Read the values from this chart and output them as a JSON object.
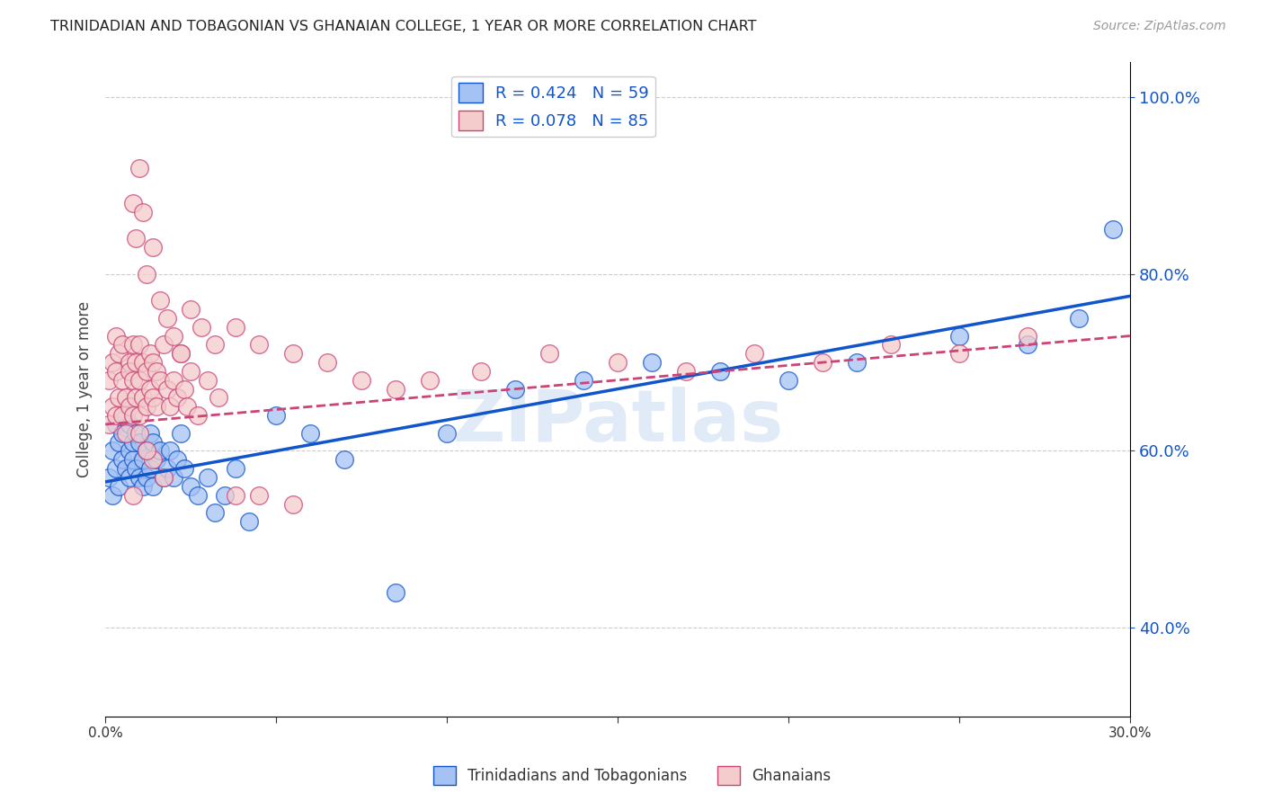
{
  "title": "TRINIDADIAN AND TOBAGONIAN VS GHANAIAN COLLEGE, 1 YEAR OR MORE CORRELATION CHART",
  "source": "Source: ZipAtlas.com",
  "ylabel": "College, 1 year or more",
  "legend_labels": [
    "Trinidadians and Tobagonians",
    "Ghanaians"
  ],
  "r_blue": 0.424,
  "n_blue": 59,
  "r_pink": 0.078,
  "n_pink": 85,
  "xlim": [
    0.0,
    0.3
  ],
  "ylim": [
    0.3,
    1.04
  ],
  "blue_color": "#a4c2f4",
  "pink_color": "#f4cccc",
  "line_blue": "#1155cc",
  "line_pink": "#cc4477",
  "watermark": "ZIPatlas",
  "blue_x": [
    0.001,
    0.002,
    0.002,
    0.003,
    0.003,
    0.004,
    0.004,
    0.005,
    0.005,
    0.006,
    0.006,
    0.007,
    0.007,
    0.007,
    0.008,
    0.008,
    0.009,
    0.009,
    0.01,
    0.01,
    0.011,
    0.011,
    0.012,
    0.012,
    0.013,
    0.013,
    0.014,
    0.014,
    0.015,
    0.016,
    0.017,
    0.018,
    0.019,
    0.02,
    0.021,
    0.022,
    0.023,
    0.025,
    0.027,
    0.03,
    0.032,
    0.035,
    0.038,
    0.042,
    0.05,
    0.06,
    0.07,
    0.085,
    0.1,
    0.12,
    0.14,
    0.16,
    0.18,
    0.2,
    0.22,
    0.25,
    0.27,
    0.285,
    0.295
  ],
  "blue_y": [
    0.57,
    0.6,
    0.55,
    0.63,
    0.58,
    0.61,
    0.56,
    0.59,
    0.62,
    0.58,
    0.64,
    0.6,
    0.57,
    0.63,
    0.59,
    0.61,
    0.58,
    0.62,
    0.57,
    0.61,
    0.56,
    0.59,
    0.6,
    0.57,
    0.62,
    0.58,
    0.61,
    0.56,
    0.59,
    0.6,
    0.57,
    0.58,
    0.6,
    0.57,
    0.59,
    0.62,
    0.58,
    0.56,
    0.55,
    0.57,
    0.53,
    0.55,
    0.58,
    0.52,
    0.64,
    0.62,
    0.59,
    0.44,
    0.62,
    0.67,
    0.68,
    0.7,
    0.69,
    0.68,
    0.7,
    0.73,
    0.72,
    0.75,
    0.85
  ],
  "pink_x": [
    0.001,
    0.001,
    0.002,
    0.002,
    0.003,
    0.003,
    0.003,
    0.004,
    0.004,
    0.005,
    0.005,
    0.005,
    0.006,
    0.006,
    0.007,
    0.007,
    0.007,
    0.008,
    0.008,
    0.008,
    0.009,
    0.009,
    0.01,
    0.01,
    0.01,
    0.011,
    0.011,
    0.012,
    0.012,
    0.013,
    0.013,
    0.014,
    0.014,
    0.015,
    0.015,
    0.016,
    0.017,
    0.018,
    0.019,
    0.02,
    0.021,
    0.022,
    0.023,
    0.024,
    0.025,
    0.027,
    0.03,
    0.033,
    0.038,
    0.045,
    0.055,
    0.008,
    0.009,
    0.01,
    0.011,
    0.012,
    0.014,
    0.016,
    0.018,
    0.02,
    0.022,
    0.025,
    0.028,
    0.032,
    0.038,
    0.045,
    0.055,
    0.065,
    0.075,
    0.085,
    0.095,
    0.11,
    0.13,
    0.15,
    0.17,
    0.19,
    0.21,
    0.23,
    0.25,
    0.27,
    0.017,
    0.014,
    0.012,
    0.01,
    0.008
  ],
  "pink_y": [
    0.63,
    0.68,
    0.65,
    0.7,
    0.64,
    0.69,
    0.73,
    0.66,
    0.71,
    0.64,
    0.68,
    0.72,
    0.62,
    0.66,
    0.7,
    0.65,
    0.69,
    0.64,
    0.68,
    0.72,
    0.66,
    0.7,
    0.64,
    0.68,
    0.72,
    0.66,
    0.7,
    0.65,
    0.69,
    0.67,
    0.71,
    0.66,
    0.7,
    0.65,
    0.69,
    0.68,
    0.72,
    0.67,
    0.65,
    0.68,
    0.66,
    0.71,
    0.67,
    0.65,
    0.69,
    0.64,
    0.68,
    0.66,
    0.55,
    0.55,
    0.54,
    0.88,
    0.84,
    0.92,
    0.87,
    0.8,
    0.83,
    0.77,
    0.75,
    0.73,
    0.71,
    0.76,
    0.74,
    0.72,
    0.74,
    0.72,
    0.71,
    0.7,
    0.68,
    0.67,
    0.68,
    0.69,
    0.71,
    0.7,
    0.69,
    0.71,
    0.7,
    0.72,
    0.71,
    0.73,
    0.57,
    0.59,
    0.6,
    0.62,
    0.55
  ]
}
